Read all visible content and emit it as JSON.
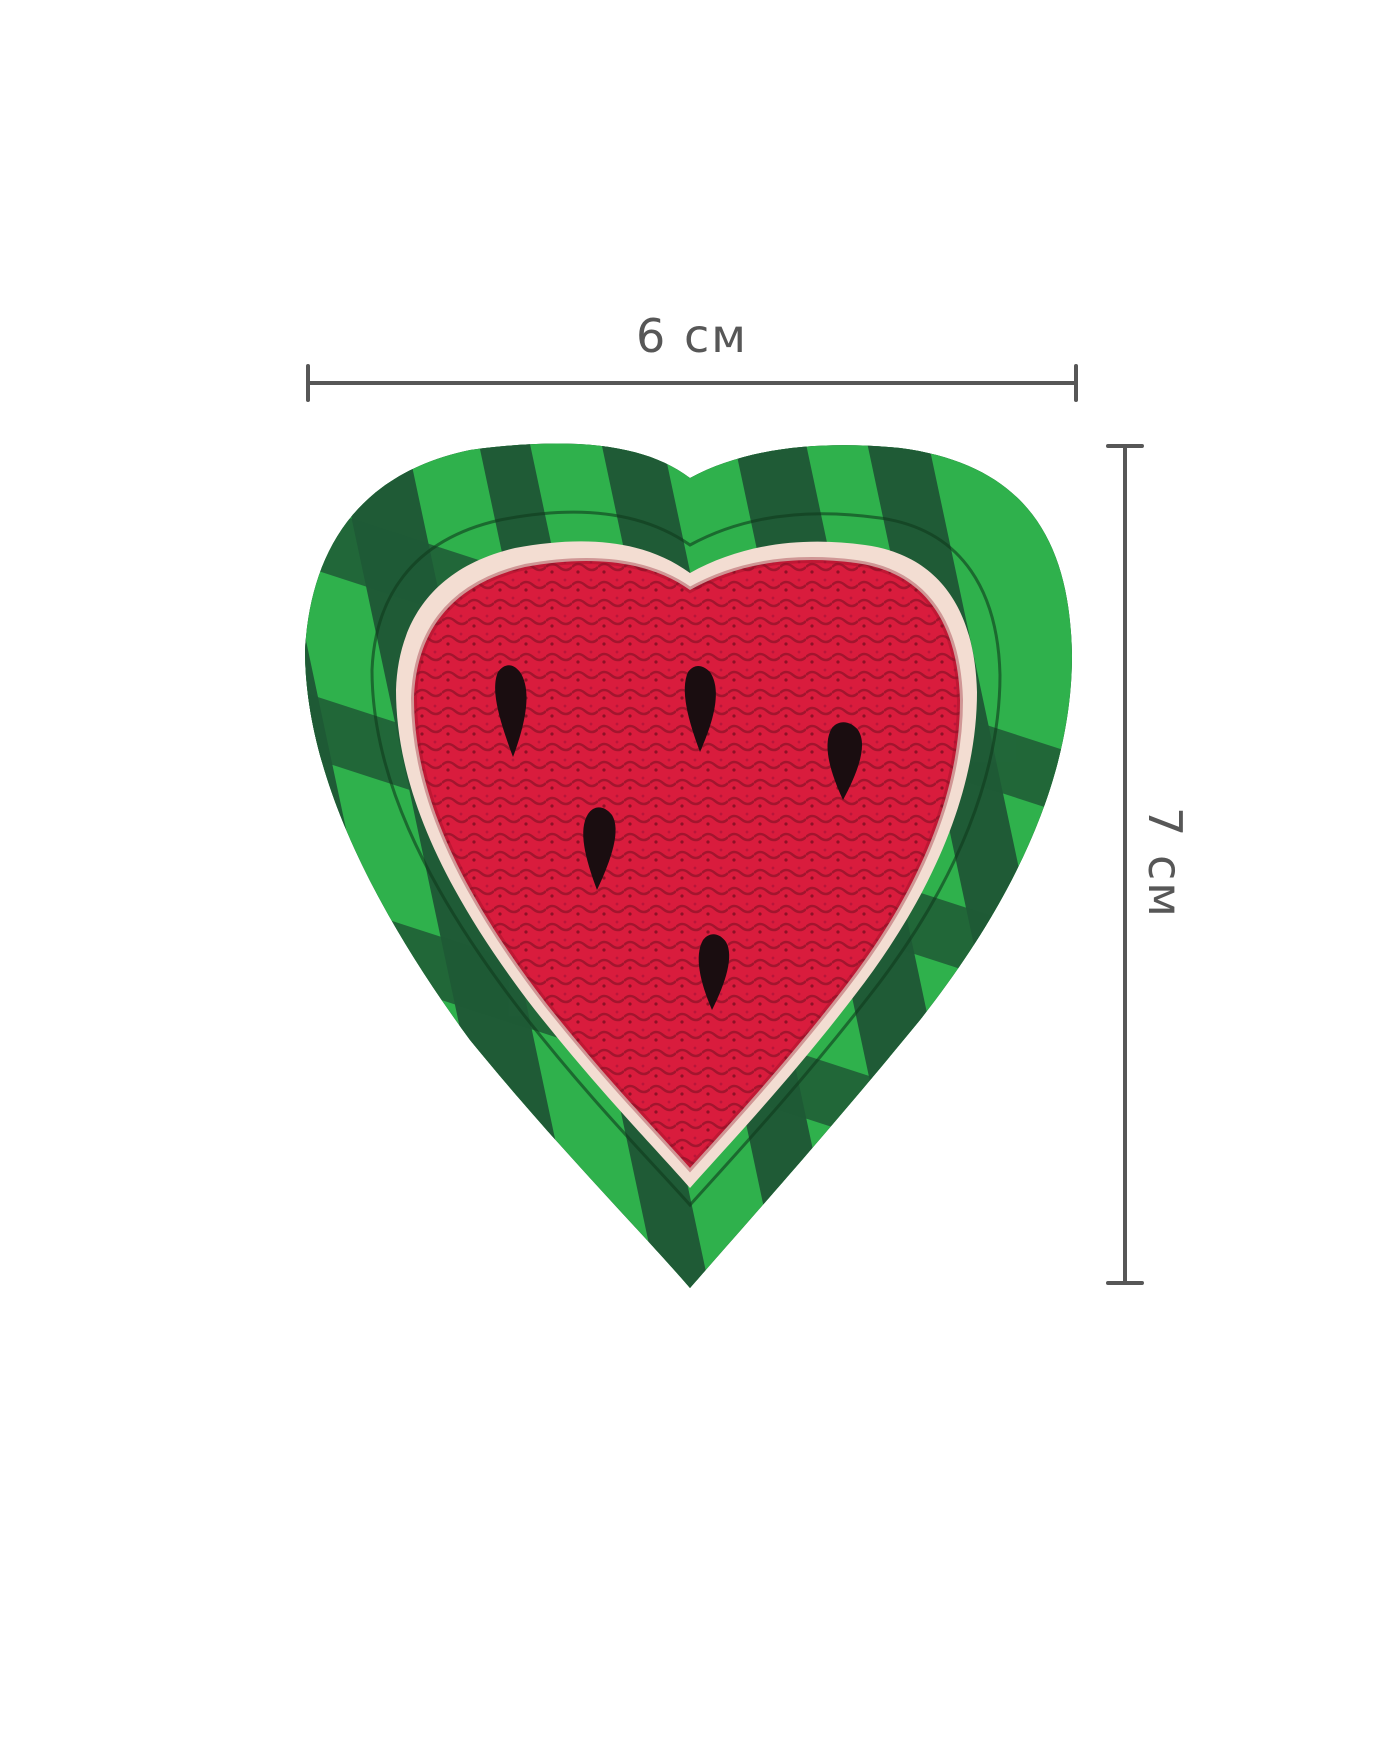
{
  "dimensions": {
    "width_label": "6 см",
    "height_label": "7 см",
    "line_color": "#575757"
  },
  "patch": {
    "subject": "watermarlon-heart-patch-icon",
    "colors": {
      "outline": "#1b2e1d",
      "rind_dark": "#1f5b36",
      "rind_light": "#2fb14c",
      "pith": "#f3ddd2",
      "flesh": "#d91c3d",
      "flesh_shade": "#8e1126",
      "seed": "#1a0d10"
    },
    "seed_count": 5
  }
}
